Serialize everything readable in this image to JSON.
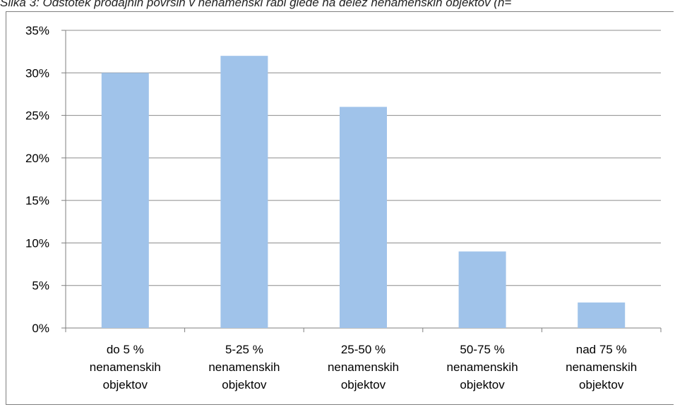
{
  "header": {
    "cut_title": "Slika 3: Odstotek prodajnih površin v nenamenski rabi glede na delež nenamenskih objektov (n="
  },
  "chart_data": {
    "type": "bar",
    "categories": [
      [
        "do 5 %",
        "nenamenskih",
        "objektov"
      ],
      [
        "5-25 %",
        "nenamenskih",
        "objektov"
      ],
      [
        "25-50 %",
        "nenamenskih",
        "objektov"
      ],
      [
        "50-75 %",
        "nenamenskih",
        "objektov"
      ],
      [
        "nad 75 %",
        "nenamenskih",
        "objektov"
      ]
    ],
    "values": [
      30,
      32,
      26,
      9,
      3
    ],
    "ylim": [
      0,
      35
    ],
    "yticks": [
      0,
      5,
      10,
      15,
      20,
      25,
      30,
      35
    ],
    "ytick_suffix": "%",
    "grid": true,
    "legend": "none",
    "colors": {
      "bar": "#a0c3ea",
      "grid": "#8c8c8c",
      "axis": "#7f7f7f"
    }
  }
}
